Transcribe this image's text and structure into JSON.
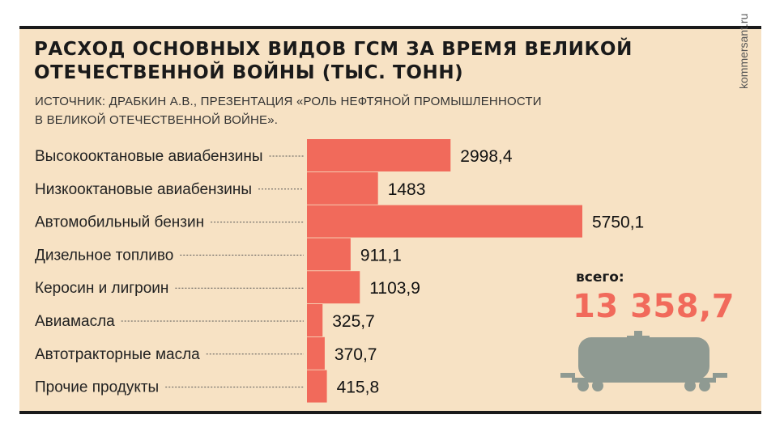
{
  "title_line1": "РАСХОД ОСНОВНЫХ ВИДОВ ГСМ ЗА ВРЕМЯ ВЕЛИКОЙ",
  "title_line2": "ОТЕЧЕСТВЕННОЙ ВОЙНЫ (ТЫС. ТОНН)",
  "source_line1": "ИСТОЧНИК: ДРАБКИН А.В., ПРЕЗЕНТАЦИЯ «РОЛЬ НЕФТЯНОЙ ПРОМЫШЛЕННОСТИ",
  "source_line2": "В ВЕЛИКОЙ ОТЕЧЕСТВЕННОЙ ВОЙНЕ».",
  "site": "kommersant.ru",
  "total": {
    "label": "всего:",
    "value": "13 358,7"
  },
  "icons": {
    "tank_car": "tank-car-icon"
  },
  "colors": {
    "bar": "#f16a5b",
    "background": "#f7e2c4",
    "tank": "#8f9a92"
  },
  "chart_data": {
    "type": "bar",
    "orientation": "horizontal",
    "categories": [
      "Высокооктановые авиабензины",
      "Низкооктановые авиабензины",
      "Автомобильный бензин",
      "Дизельное топливо",
      "Керосин и лигроин",
      "Авиамасла",
      "Автотракторные масла",
      "Прочие продукты"
    ],
    "values": [
      2998.4,
      1483,
      5750.1,
      911.1,
      1103.9,
      325.7,
      370.7,
      415.8
    ],
    "value_labels": [
      "2998,4",
      "1483",
      "5750,1",
      "911,1",
      "1103,9",
      "325,7",
      "370,7",
      "415,8"
    ],
    "title": "РАСХОД ОСНОВНЫХ ВИДОВ ГСМ ЗА ВРЕМЯ ВЕЛИКОЙ ОТЕЧЕСТВЕННОЙ ВОЙНЫ (ТЫС. ТОНН)",
    "grid": false
  }
}
